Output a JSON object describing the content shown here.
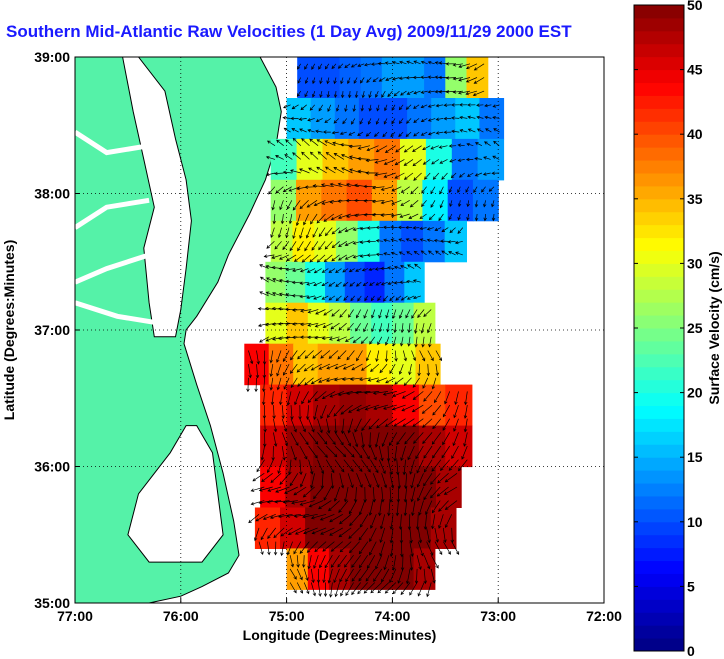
{
  "chart_data": {
    "type": "heatmap",
    "title": "Southern Mid-Atlantic Raw Velocities (1 Day Avg) 2009/11/29 2000 EST",
    "xlabel": "Longitude (Degrees:Minutes)",
    "ylabel": "Latitude (Degrees:Minutes)",
    "colorbar_label": "Surface Velocity (cm/s)",
    "xlim": [
      -77,
      -72
    ],
    "ylim": [
      35,
      39
    ],
    "clim": [
      0,
      50
    ],
    "x_ticks": [
      {
        "value": -77,
        "label": "77:00"
      },
      {
        "value": -76,
        "label": "76:00"
      },
      {
        "value": -75,
        "label": "75:00"
      },
      {
        "value": -74,
        "label": "74:00"
      },
      {
        "value": -73,
        "label": "73:00"
      },
      {
        "value": -72,
        "label": "72:00"
      }
    ],
    "y_ticks": [
      {
        "value": 35,
        "label": "35:00"
      },
      {
        "value": 36,
        "label": "36:00"
      },
      {
        "value": 37,
        "label": "37:00"
      },
      {
        "value": 38,
        "label": "38:00"
      },
      {
        "value": 39,
        "label": "39:00"
      }
    ],
    "colorbar_ticks": [
      0,
      5,
      10,
      15,
      20,
      25,
      30,
      35,
      40,
      45,
      50
    ],
    "grid": true,
    "grid_style": "dotted",
    "colormap": "jet",
    "land_color": "#55f2a8",
    "vector_color": "#000000",
    "velocity_field": [
      {
        "lat": 38.85,
        "lon_min": -74.9,
        "lon_max": -73.1,
        "values": [
          10,
          10,
          11,
          12,
          14,
          14,
          12,
          26,
          34
        ]
      },
      {
        "lat": 38.55,
        "lon_min": -75.0,
        "lon_max": -72.95,
        "values": [
          16,
          14,
          12,
          10,
          10,
          12,
          14,
          16,
          12
        ]
      },
      {
        "lat": 38.25,
        "lon_min": -75.15,
        "lon_max": -72.95,
        "values": [
          22,
          30,
          34,
          36,
          38,
          30,
          20,
          12,
          14
        ]
      },
      {
        "lat": 37.95,
        "lon_min": -75.15,
        "lon_max": -73.0,
        "values": [
          26,
          36,
          38,
          40,
          36,
          28,
          18,
          10,
          12
        ]
      },
      {
        "lat": 37.65,
        "lon_min": -75.15,
        "lon_max": -73.3,
        "values": [
          28,
          32,
          30,
          26,
          20,
          12,
          10,
          12,
          16
        ]
      },
      {
        "lat": 37.35,
        "lon_min": -75.2,
        "lon_max": -73.7,
        "values": [
          26,
          24,
          20,
          14,
          10,
          8,
          12,
          16
        ]
      },
      {
        "lat": 37.05,
        "lon_min": -75.2,
        "lon_max": -73.6,
        "values": [
          30,
          34,
          30,
          28,
          24,
          22,
          24,
          28
        ]
      },
      {
        "lat": 36.75,
        "lon_min": -75.4,
        "lon_max": -73.55,
        "values": [
          44,
          38,
          34,
          36,
          36,
          32,
          30,
          34
        ]
      },
      {
        "lat": 36.45,
        "lon_min": -75.25,
        "lon_max": -73.25,
        "values": [
          42,
          46,
          48,
          49,
          48,
          44,
          40,
          42
        ]
      },
      {
        "lat": 36.15,
        "lon_min": -75.25,
        "lon_max": -73.25,
        "values": [
          46,
          49,
          50,
          50,
          50,
          50,
          48,
          46
        ]
      },
      {
        "lat": 35.85,
        "lon_min": -75.25,
        "lon_max": -73.35,
        "values": [
          44,
          48,
          50,
          50,
          50,
          50,
          50,
          48
        ]
      },
      {
        "lat": 35.55,
        "lon_min": -75.3,
        "lon_max": -73.4,
        "values": [
          42,
          46,
          50,
          50,
          50,
          50,
          50,
          48
        ]
      },
      {
        "lat": 35.25,
        "lon_min": -75.0,
        "lon_max": -73.6,
        "values": [
          36,
          44,
          48,
          50,
          50,
          50,
          48
        ]
      }
    ]
  }
}
